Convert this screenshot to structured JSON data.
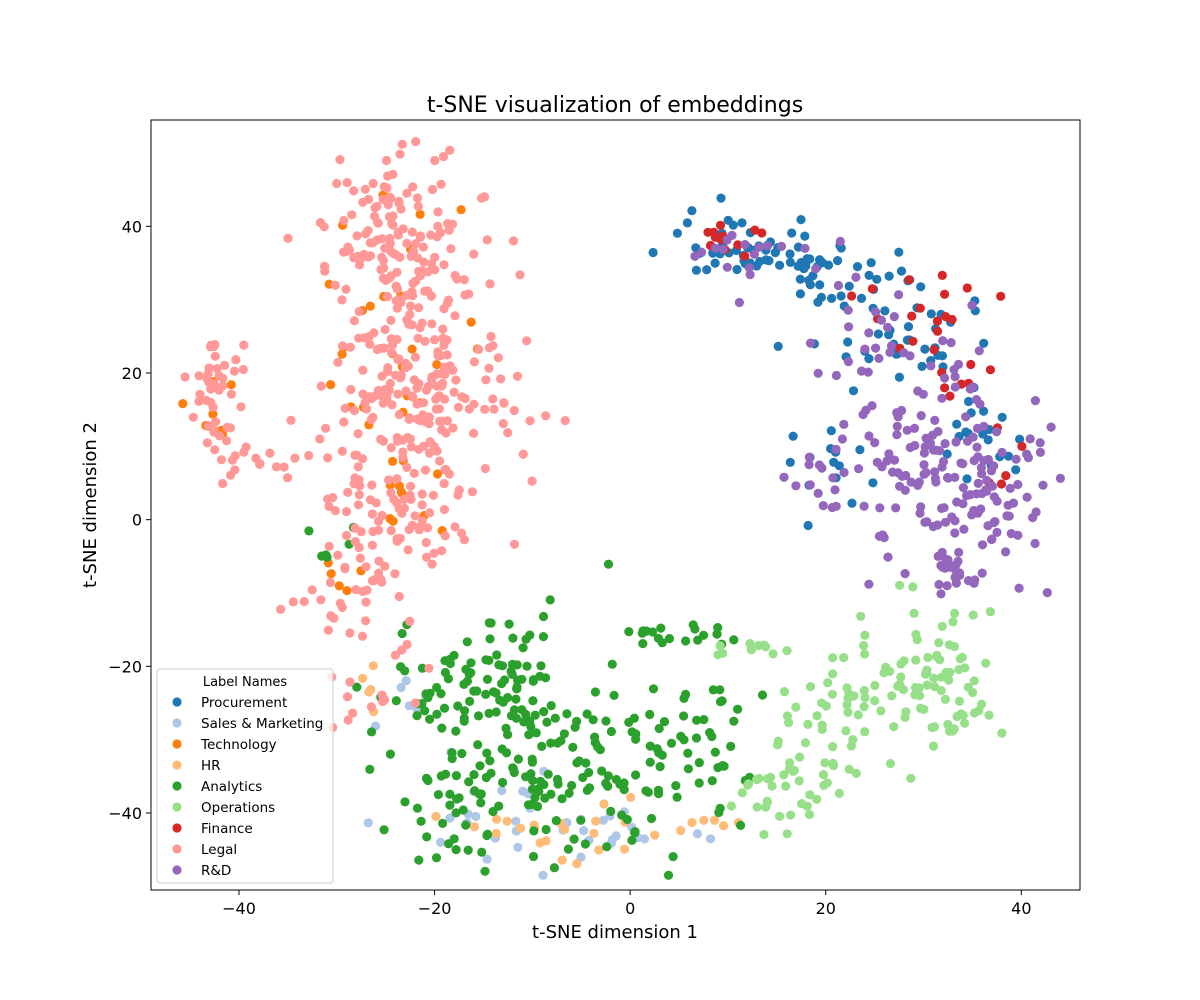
{
  "chart_data": {
    "type": "scatter",
    "title": "t-SNE visualization of embeddings",
    "xlabel": "t-SNE dimension 1",
    "ylabel": "t-SNE dimension 2",
    "xlim": [
      -49,
      46
    ],
    "ylim": [
      -50.5,
      54.5
    ],
    "xticks": [
      -40,
      -20,
      0,
      20,
      40
    ],
    "yticks": [
      -40,
      -20,
      0,
      20,
      40
    ],
    "xtick_labels": [
      "−40",
      "−20",
      "0",
      "20",
      "40"
    ],
    "ytick_labels": [
      "−40",
      "−20",
      "0",
      "20",
      "40"
    ],
    "grid": false,
    "legend": {
      "title": "Label Names",
      "position": "lower-left"
    },
    "series": [
      {
        "name": "Procurement",
        "color": "#1f77b4",
        "clusters": [
          {
            "cx": 13,
            "cy": 37,
            "sx": 5,
            "sy": 2.5,
            "n": 55
          },
          {
            "cx": 22,
            "cy": 32,
            "sx": 3,
            "sy": 2.5,
            "n": 25
          },
          {
            "cx": 29,
            "cy": 24,
            "sx": 4,
            "sy": 4,
            "n": 40
          },
          {
            "cx": 36,
            "cy": 11,
            "sx": 2.5,
            "sy": 3,
            "n": 18
          },
          {
            "cx": 20,
            "cy": 7,
            "sx": 2,
            "sy": 3,
            "n": 14
          }
        ]
      },
      {
        "name": "Sales & Marketing",
        "color": "#aec7e8",
        "clusters": [
          {
            "cx": -12,
            "cy": -40,
            "sx": 5,
            "sy": 3,
            "n": 24
          },
          {
            "cx": 0,
            "cy": -43,
            "sx": 4,
            "sy": 1.5,
            "n": 12
          },
          {
            "cx": -23,
            "cy": -26,
            "sx": 2,
            "sy": 2,
            "n": 6
          }
        ]
      },
      {
        "name": "Technology",
        "color": "#ff7f0e",
        "clusters": [
          {
            "cx": -25,
            "cy": 25,
            "sx": 4,
            "sy": 9,
            "n": 26
          },
          {
            "cx": -22,
            "cy": 2,
            "sx": 3,
            "sy": 4,
            "n": 10
          },
          {
            "cx": -42,
            "cy": 14,
            "sx": 1.5,
            "sy": 4,
            "n": 7
          },
          {
            "cx": -28,
            "cy": -8,
            "sx": 2,
            "sy": 2,
            "n": 5
          }
        ]
      },
      {
        "name": "HR",
        "color": "#ffbb78",
        "clusters": [
          {
            "cx": -7,
            "cy": -42,
            "sx": 8,
            "sy": 2.5,
            "n": 22
          },
          {
            "cx": -26,
            "cy": -24,
            "sx": 1.5,
            "sy": 1.5,
            "n": 5
          },
          {
            "cx": 9,
            "cy": -42,
            "sx": 2,
            "sy": 1.5,
            "n": 6
          }
        ]
      },
      {
        "name": "Analytics",
        "color": "#2ca02c",
        "clusters": [
          {
            "cx": -14,
            "cy": -23,
            "sx": 5,
            "sy": 5,
            "n": 110
          },
          {
            "cx": -5,
            "cy": -36,
            "sx": 6,
            "sy": 5,
            "n": 100
          },
          {
            "cx": 5,
            "cy": -30,
            "sx": 4,
            "sy": 5,
            "n": 45
          },
          {
            "cx": -18,
            "cy": -37,
            "sx": 4,
            "sy": 5,
            "n": 40
          },
          {
            "cx": 5,
            "cy": -16,
            "sx": 3,
            "sy": 1,
            "n": 18
          },
          {
            "cx": -31,
            "cy": -4,
            "sx": 1.5,
            "sy": 3,
            "n": 6
          }
        ]
      },
      {
        "name": "Operations",
        "color": "#98df8a",
        "clusters": [
          {
            "cx": 30,
            "cy": -22,
            "sx": 4,
            "sy": 5,
            "n": 70
          },
          {
            "cx": 20,
            "cy": -28,
            "sx": 3,
            "sy": 5,
            "n": 45
          },
          {
            "cx": 15,
            "cy": -37,
            "sx": 3,
            "sy": 2.5,
            "n": 30
          },
          {
            "cx": 34,
            "cy": -27,
            "sx": 1.5,
            "sy": 2,
            "n": 12
          },
          {
            "cx": 12,
            "cy": -17,
            "sx": 4,
            "sy": 1,
            "n": 10
          }
        ]
      },
      {
        "name": "Finance",
        "color": "#d62728",
        "clusters": [
          {
            "cx": 10,
            "cy": 39,
            "sx": 2,
            "sy": 1.5,
            "n": 12
          },
          {
            "cx": 29,
            "cy": 28,
            "sx": 3,
            "sy": 3,
            "n": 16
          },
          {
            "cx": 33,
            "cy": 21,
            "sx": 2,
            "sy": 2,
            "n": 8
          },
          {
            "cx": 38,
            "cy": 8,
            "sx": 1.5,
            "sy": 3,
            "n": 5
          }
        ]
      },
      {
        "name": "Legal",
        "color": "#ff9896",
        "clusters": [
          {
            "cx": -23,
            "cy": 36,
            "sx": 4,
            "sy": 7,
            "n": 170
          },
          {
            "cx": -21,
            "cy": 16,
            "sx": 5,
            "sy": 6,
            "n": 170
          },
          {
            "cx": -25,
            "cy": 0,
            "sx": 4,
            "sy": 5,
            "n": 80
          },
          {
            "cx": -42,
            "cy": 17,
            "sx": 1.5,
            "sy": 5,
            "n": 45
          },
          {
            "cx": -38,
            "cy": 8,
            "sx": 3,
            "sy": 1.2,
            "n": 14
          },
          {
            "cx": -29,
            "cy": -12,
            "sx": 3,
            "sy": 3,
            "n": 20
          },
          {
            "cx": -26,
            "cy": -23,
            "sx": 2,
            "sy": 3,
            "n": 15
          }
        ]
      },
      {
        "name": "R&D",
        "color": "#9467bd",
        "clusters": [
          {
            "cx": 31,
            "cy": 8,
            "sx": 5,
            "sy": 6,
            "n": 120
          },
          {
            "cx": 37,
            "cy": 3,
            "sx": 2.5,
            "sy": 5,
            "n": 40
          },
          {
            "cx": 33,
            "cy": -7,
            "sx": 2.5,
            "sy": 2,
            "n": 25
          },
          {
            "cx": 27,
            "cy": 25,
            "sx": 4,
            "sy": 4,
            "n": 30
          },
          {
            "cx": 12,
            "cy": 36,
            "sx": 4,
            "sy": 3,
            "n": 18
          },
          {
            "cx": 20,
            "cy": 5,
            "sx": 1.5,
            "sy": 2,
            "n": 10
          }
        ]
      }
    ]
  }
}
